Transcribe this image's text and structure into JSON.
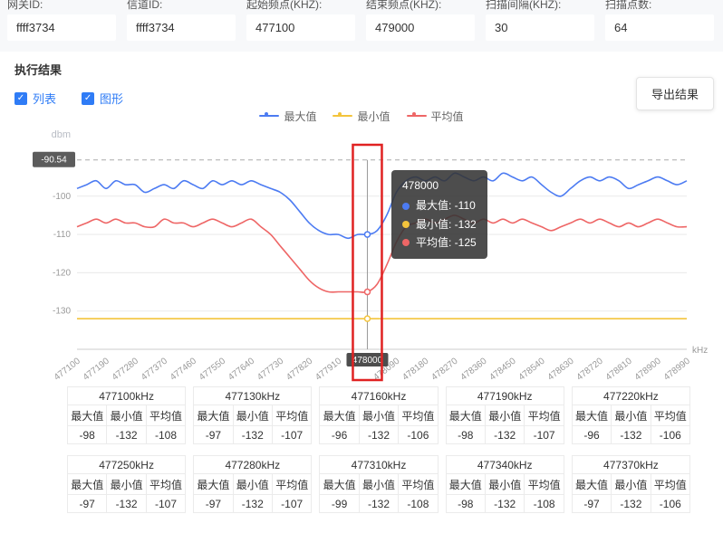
{
  "header": {
    "fields": [
      {
        "label": "网关ID:",
        "value": "ffff3734"
      },
      {
        "label": "信道ID:",
        "value": "ffff3734"
      },
      {
        "label": "起始频点(KHZ):",
        "value": "477100"
      },
      {
        "label": "结束频点(KHZ):",
        "value": "479000"
      },
      {
        "label": "扫描间隔(KHZ):",
        "value": "30"
      },
      {
        "label": "扫描点数:",
        "value": "64"
      }
    ]
  },
  "results": {
    "title": "执行结果",
    "checkboxes": [
      {
        "label": "列表",
        "checked": true
      },
      {
        "label": "图形",
        "checked": true
      }
    ],
    "export_button": "导出结果"
  },
  "chart": {
    "y_unit": "dbm",
    "x_unit": "kHz",
    "ref_line": {
      "value": -90.54,
      "label": "-90.54"
    },
    "y_ticks": [
      -100,
      -110,
      -120,
      -130
    ],
    "tooltip": {
      "title": "478000",
      "rows": [
        {
          "label": "最大值",
          "value": "-110",
          "color": "#4c7bf2"
        },
        {
          "label": "最小值",
          "value": "-132",
          "color": "#f3c43c"
        },
        {
          "label": "平均值",
          "value": "-125",
          "color": "#ee6666"
        }
      ]
    },
    "highlight": {
      "index": 30,
      "label": "478000"
    },
    "annotation_color": "#e02222"
  },
  "chart_data": {
    "type": "line",
    "title": "",
    "x_start": 477100,
    "x_step": 30,
    "x_count": 64,
    "x_tick_every": 3,
    "ylim": [
      -140,
      -88
    ],
    "series": [
      {
        "name": "最大值",
        "color": "#4c7bf2",
        "values": [
          -98,
          -97,
          -96,
          -98,
          -96,
          -97,
          -97,
          -99,
          -98,
          -97,
          -98,
          -96,
          -97,
          -98,
          -96,
          -97,
          -96,
          -97,
          -96,
          -97,
          -98,
          -99,
          -101,
          -104,
          -107,
          -109,
          -110,
          -110,
          -111,
          -110,
          -110,
          -109,
          -105,
          -99,
          -96,
          -95,
          -96,
          -95,
          -96,
          -94,
          -95,
          -96,
          -95,
          -96,
          -94,
          -95,
          -96,
          -95,
          -97,
          -99,
          -100,
          -98,
          -96,
          -95,
          -96,
          -95,
          -96,
          -98,
          -97,
          -96,
          -95,
          -96,
          -97,
          -96
        ]
      },
      {
        "name": "最小值",
        "color": "#f3c43c",
        "values": [
          -132,
          -132,
          -132,
          -132,
          -132,
          -132,
          -132,
          -132,
          -132,
          -132,
          -132,
          -132,
          -132,
          -132,
          -132,
          -132,
          -132,
          -132,
          -132,
          -132,
          -132,
          -132,
          -132,
          -132,
          -132,
          -132,
          -132,
          -132,
          -132,
          -132,
          -132,
          -132,
          -132,
          -132,
          -132,
          -132,
          -132,
          -132,
          -132,
          -132,
          -132,
          -132,
          -132,
          -132,
          -132,
          -132,
          -132,
          -132,
          -132,
          -132,
          -132,
          -132,
          -132,
          -132,
          -132,
          -132,
          -132,
          -132,
          -132,
          -132,
          -132,
          -132,
          -132,
          -132
        ]
      },
      {
        "name": "平均值",
        "color": "#ee6666",
        "values": [
          -108,
          -107,
          -106,
          -107,
          -106,
          -107,
          -107,
          -108,
          -108,
          -106,
          -107,
          -107,
          -108,
          -107,
          -106,
          -107,
          -108,
          -107,
          -106,
          -108,
          -110,
          -113,
          -116,
          -119,
          -122,
          -124,
          -125,
          -125,
          -125,
          -125,
          -125,
          -123,
          -118,
          -112,
          -108,
          -107,
          -106,
          -107,
          -106,
          -105,
          -106,
          -107,
          -106,
          -107,
          -106,
          -107,
          -106,
          -107,
          -108,
          -109,
          -108,
          -107,
          -106,
          -107,
          -106,
          -107,
          -108,
          -107,
          -108,
          -107,
          -106,
          -107,
          -108,
          -108
        ]
      }
    ]
  },
  "tables": {
    "col_headers": [
      "最大值",
      "最小值",
      "平均值"
    ],
    "rows": [
      [
        {
          "freq": "477100kHz",
          "values": [
            "-98",
            "-132",
            "-108"
          ]
        },
        {
          "freq": "477130kHz",
          "values": [
            "-97",
            "-132",
            "-107"
          ]
        },
        {
          "freq": "477160kHz",
          "values": [
            "-96",
            "-132",
            "-106"
          ]
        },
        {
          "freq": "477190kHz",
          "values": [
            "-98",
            "-132",
            "-107"
          ]
        },
        {
          "freq": "477220kHz",
          "values": [
            "-96",
            "-132",
            "-106"
          ]
        }
      ],
      [
        {
          "freq": "477250kHz",
          "values": [
            "-97",
            "-132",
            "-107"
          ]
        },
        {
          "freq": "477280kHz",
          "values": [
            "-97",
            "-132",
            "-107"
          ]
        },
        {
          "freq": "477310kHz",
          "values": [
            "-99",
            "-132",
            "-108"
          ]
        },
        {
          "freq": "477340kHz",
          "values": [
            "-98",
            "-132",
            "-108"
          ]
        },
        {
          "freq": "477370kHz",
          "values": [
            "-97",
            "-132",
            "-106"
          ]
        }
      ]
    ]
  }
}
